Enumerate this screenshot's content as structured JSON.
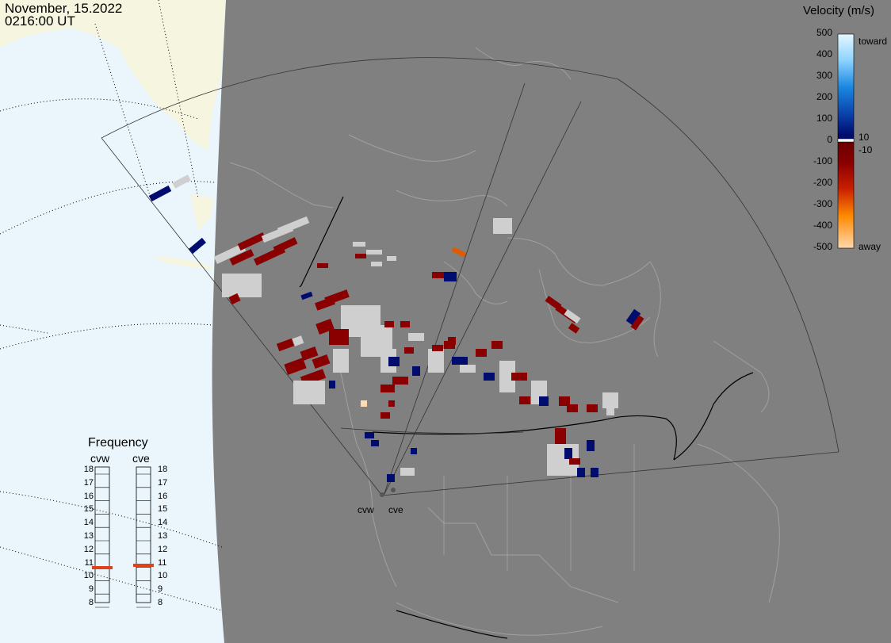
{
  "header": {
    "date": "November, 15.2022",
    "time": "0216:00 UT"
  },
  "legend": {
    "title": "Velocity (m/s)",
    "scale": [
      "500",
      "400",
      "300",
      "200",
      "100",
      "0",
      "-100",
      "-200",
      "-300",
      "-400",
      "-500"
    ],
    "toward_label": "toward",
    "away_label": "away",
    "pos_threshold": "10",
    "neg_threshold": "-10",
    "colors": {
      "toward_max": "#e6f6ff",
      "toward_mid": "#1a86e0",
      "toward_min": "#000c6e",
      "near_zero": "#cfcfcf",
      "away_min": "#6a0000",
      "away_mid": "#e05a00",
      "away_max": "#ffd9b0"
    }
  },
  "frequency": {
    "title": "Frequency",
    "radars": [
      {
        "name": "cvw",
        "value_mhz": 10.6
      },
      {
        "name": "cve",
        "value_mhz": 10.8
      }
    ],
    "ticks": [
      "18",
      "17",
      "16",
      "15",
      "14",
      "13",
      "12",
      "11",
      "10",
      "9",
      "8"
    ],
    "indicator_color": "#e0401a"
  },
  "sites": [
    {
      "name": "cvw"
    },
    {
      "name": "cve"
    }
  ],
  "colors": {
    "ocean": "#eaf6fc",
    "night": "#808080",
    "land_day": "#f6f6e0",
    "coastline": "#a0a0a0",
    "border": "#000000"
  }
}
